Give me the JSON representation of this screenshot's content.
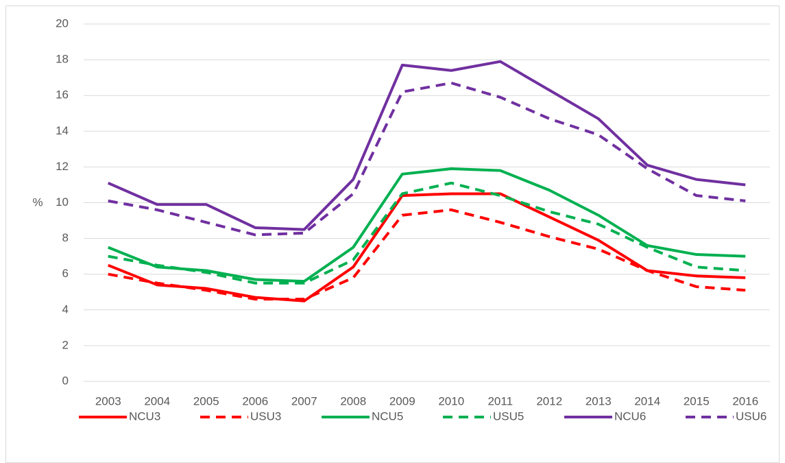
{
  "chart_data": {
    "type": "line",
    "ylabel": "%",
    "categories": [
      "2003",
      "2004",
      "2005",
      "2006",
      "2007",
      "2008",
      "2009",
      "2010",
      "2011",
      "2012",
      "2013",
      "2014",
      "2015",
      "2016"
    ],
    "ylim": [
      0,
      20
    ],
    "yticks": [
      0,
      2,
      4,
      6,
      8,
      10,
      12,
      14,
      16,
      18,
      20
    ],
    "grid": true,
    "legend": "bottom",
    "series": [
      {
        "name": "NCU3",
        "color": "#ff0000",
        "dashed": false,
        "values": [
          6.5,
          5.4,
          5.2,
          4.7,
          4.5,
          6.4,
          10.4,
          10.5,
          10.5,
          9.2,
          7.9,
          6.2,
          5.9,
          5.8
        ]
      },
      {
        "name": "USU3",
        "color": "#ff0000",
        "dashed": true,
        "values": [
          6.0,
          5.5,
          5.1,
          4.6,
          4.6,
          5.8,
          9.3,
          9.6,
          8.9,
          8.1,
          7.4,
          6.2,
          5.3,
          5.1
        ]
      },
      {
        "name": "NCU5",
        "color": "#00b050",
        "dashed": false,
        "values": [
          7.5,
          6.4,
          6.2,
          5.7,
          5.6,
          7.5,
          11.6,
          11.9,
          11.8,
          10.7,
          9.3,
          7.6,
          7.1,
          7.0
        ]
      },
      {
        "name": "USU5",
        "color": "#00b050",
        "dashed": true,
        "values": [
          7.0,
          6.5,
          6.1,
          5.5,
          5.5,
          6.8,
          10.5,
          11.1,
          10.4,
          9.5,
          8.8,
          7.5,
          6.4,
          6.2
        ]
      },
      {
        "name": "NCU6",
        "color": "#7030a0",
        "dashed": false,
        "values": [
          11.1,
          9.9,
          9.9,
          8.6,
          8.5,
          11.3,
          17.7,
          17.4,
          17.9,
          16.3,
          14.7,
          12.1,
          11.3,
          11.0
        ]
      },
      {
        "name": "USU6",
        "color": "#7030a0",
        "dashed": true,
        "values": [
          10.1,
          9.6,
          8.9,
          8.2,
          8.3,
          10.5,
          16.2,
          16.7,
          15.9,
          14.7,
          13.8,
          11.9,
          10.4,
          10.1
        ]
      }
    ]
  }
}
